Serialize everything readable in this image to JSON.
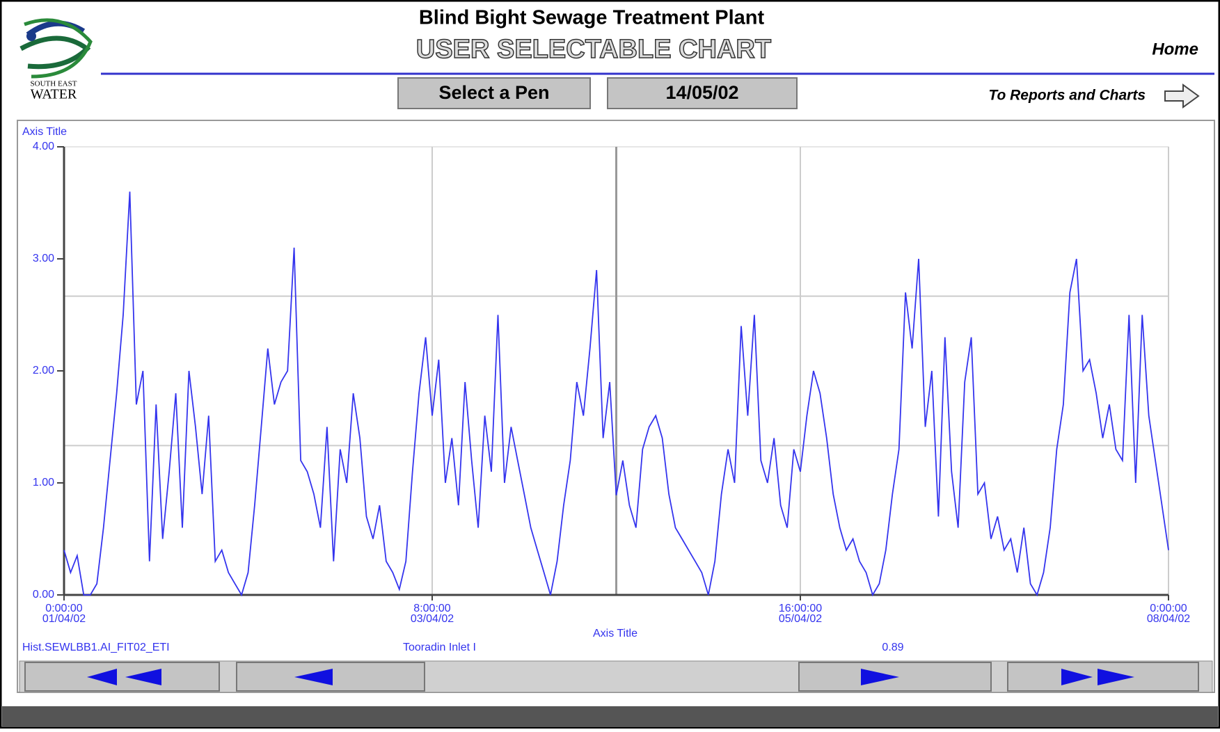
{
  "header": {
    "title": "Blind Bight Sewage Treatment Plant",
    "subtitle": "USER SELECTABLE CHART",
    "home": "Home",
    "logo": {
      "line1": "SOUTH EAST",
      "line2": "WATER"
    }
  },
  "toolbar": {
    "pen_button": "Select a Pen",
    "date_button": "14/05/02",
    "reports_link": "To Reports and Charts"
  },
  "chart_data": {
    "type": "line",
    "y_axis_title": "Axis Title",
    "x_axis_title": "Axis Title",
    "color": "#3434ee",
    "grid": true,
    "ylim": [
      0,
      4
    ],
    "yticks": [
      {
        "value": 0,
        "label": "0.00"
      },
      {
        "value": 1,
        "label": "1.00"
      },
      {
        "value": 2,
        "label": "2.00"
      },
      {
        "value": 3,
        "label": "3.00"
      },
      {
        "value": 4,
        "label": "4.00"
      }
    ],
    "xlim": [
      0,
      168
    ],
    "xticks": [
      {
        "value": 0,
        "label": "0:00:00",
        "date": "01/04/02"
      },
      {
        "value": 56,
        "label": "8:00:00",
        "date": "03/04/02"
      },
      {
        "value": 112,
        "label": "16:00:00",
        "date": "05/04/02"
      },
      {
        "value": 168,
        "label": "0:00:00",
        "date": "08/04/02"
      }
    ],
    "values": [
      0.4,
      0.2,
      0.35,
      0.0,
      0.0,
      0.1,
      0.6,
      1.2,
      1.8,
      2.5,
      3.6,
      1.7,
      2.0,
      0.3,
      1.7,
      0.5,
      1.1,
      1.8,
      0.6,
      2.0,
      1.5,
      0.9,
      1.6,
      0.3,
      0.4,
      0.2,
      0.1,
      0.0,
      0.2,
      0.8,
      1.5,
      2.2,
      1.7,
      1.9,
      2.0,
      3.1,
      1.2,
      1.1,
      0.9,
      0.6,
      1.5,
      0.3,
      1.3,
      1.0,
      1.8,
      1.4,
      0.7,
      0.5,
      0.8,
      0.3,
      0.2,
      0.05,
      0.3,
      1.1,
      1.8,
      2.3,
      1.6,
      2.1,
      1.0,
      1.4,
      0.8,
      1.9,
      1.2,
      0.6,
      1.6,
      1.1,
      2.5,
      1.0,
      1.5,
      1.2,
      0.9,
      0.6,
      0.4,
      0.2,
      0.0,
      0.3,
      0.8,
      1.2,
      1.9,
      1.6,
      2.2,
      2.9,
      1.4,
      1.9,
      0.89,
      1.2,
      0.8,
      0.6,
      1.3,
      1.5,
      1.6,
      1.4,
      0.9,
      0.6,
      0.5,
      0.4,
      0.3,
      0.2,
      0.0,
      0.3,
      0.9,
      1.3,
      1.0,
      2.4,
      1.6,
      2.5,
      1.2,
      1.0,
      1.4,
      0.8,
      0.6,
      1.3,
      1.1,
      1.6,
      2.0,
      1.8,
      1.4,
      0.9,
      0.6,
      0.4,
      0.5,
      0.3,
      0.2,
      0.0,
      0.1,
      0.4,
      0.9,
      1.3,
      2.7,
      2.2,
      3.0,
      1.5,
      2.0,
      0.7,
      2.3,
      1.1,
      0.6,
      1.9,
      2.3,
      0.9,
      1.0,
      0.5,
      0.7,
      0.4,
      0.5,
      0.2,
      0.6,
      0.1,
      0.0,
      0.2,
      0.6,
      1.3,
      1.7,
      2.7,
      3.0,
      2.0,
      2.1,
      1.8,
      1.4,
      1.7,
      1.3,
      1.2,
      2.5,
      1.0,
      2.5,
      1.6,
      1.2,
      0.8,
      0.4
    ]
  },
  "footer": {
    "tag": "Hist.SEWLBB1.AI_FIT02_ETI",
    "description": "Tooradin Inlet I",
    "value": "0.89"
  }
}
